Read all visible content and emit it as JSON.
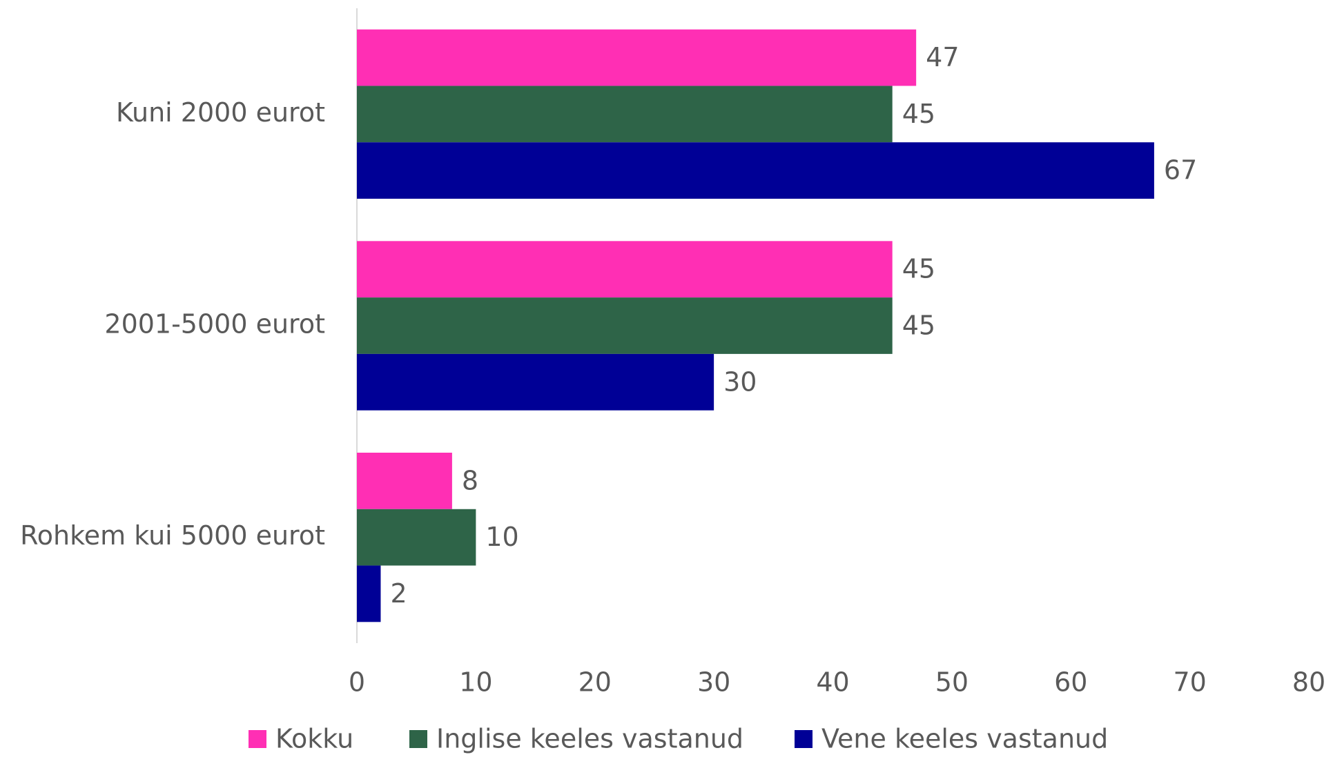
{
  "chart_data": {
    "type": "barh",
    "categories": [
      "Kuni 2000 eurot",
      "2001-5000 eurot",
      "Rohkem kui 5000 eurot"
    ],
    "series": [
      {
        "name": "Kokku",
        "color": "#ff2fb4",
        "values": [
          47,
          45,
          8
        ]
      },
      {
        "name": "Inglise keeles vastanud",
        "color": "#2e6448",
        "values": [
          45,
          45,
          10
        ]
      },
      {
        "name": "Vene keeles vastanud",
        "color": "#000096",
        "values": [
          67,
          30,
          2
        ]
      }
    ],
    "xlim": [
      0,
      80
    ],
    "xticks": [
      0,
      10,
      20,
      30,
      40,
      50,
      60,
      70,
      80
    ],
    "grid": false,
    "legend": "bottom"
  }
}
